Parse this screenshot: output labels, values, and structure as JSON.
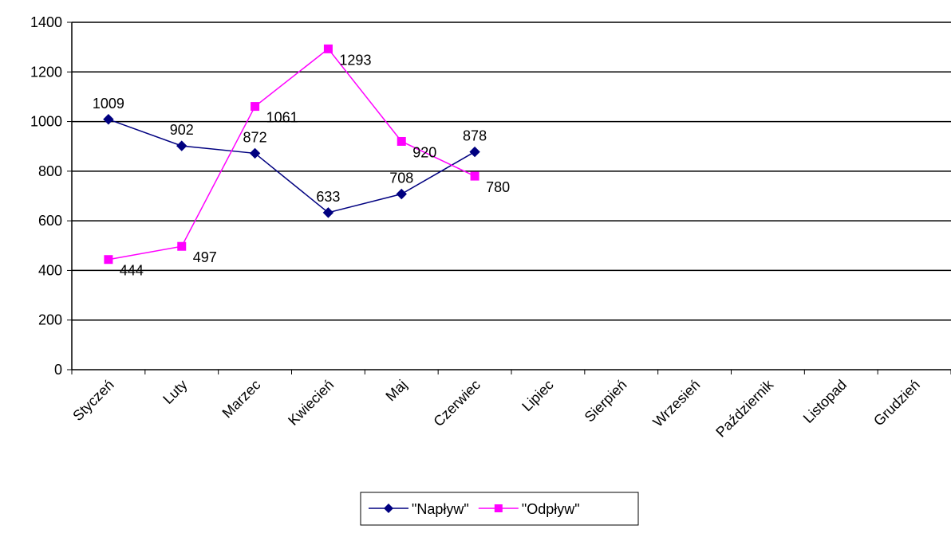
{
  "chart_data": {
    "type": "line",
    "categories": [
      "Styczeń",
      "Luty",
      "Marzec",
      "Kwiecień",
      "Maj",
      "Czerwiec",
      "Lipiec",
      "Sierpień",
      "Wrzesień",
      "Październik",
      "Listopad",
      "Grudzień"
    ],
    "series": [
      {
        "name": "\"Napływ\"",
        "color": "#000080",
        "marker": "diamond",
        "values": [
          1009,
          902,
          872,
          633,
          708,
          878,
          null,
          null,
          null,
          null,
          null,
          null
        ]
      },
      {
        "name": "\"Odpływ\"",
        "color": "#ff00ff",
        "marker": "square",
        "values": [
          444,
          497,
          1061,
          1293,
          920,
          780,
          null,
          null,
          null,
          null,
          null,
          null
        ]
      }
    ],
    "ylim": [
      0,
      1400
    ],
    "yticks": [
      0,
      200,
      400,
      600,
      800,
      1000,
      1200,
      1400
    ],
    "grid": true,
    "legend": "bottom"
  }
}
